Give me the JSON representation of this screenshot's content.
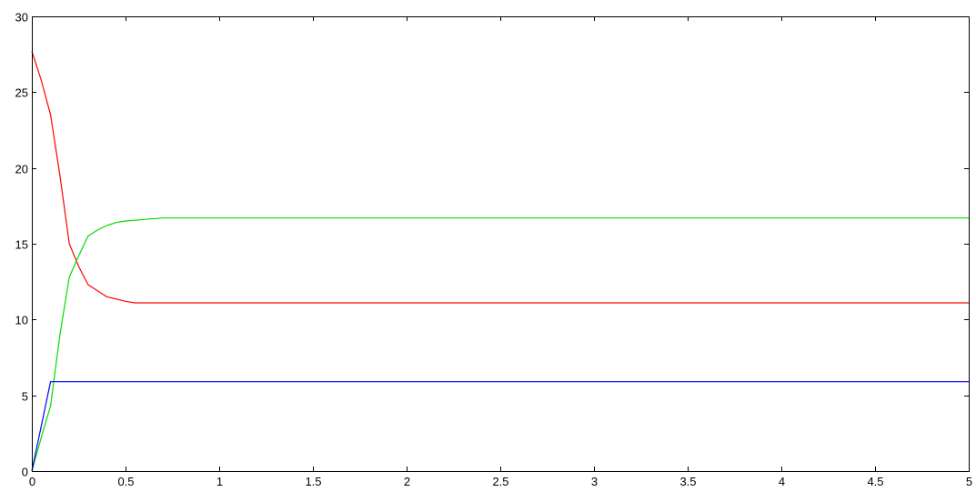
{
  "chart_data": {
    "type": "line",
    "title": "",
    "xlabel": "",
    "ylabel": "",
    "xlim": [
      0,
      5
    ],
    "ylim": [
      0,
      30
    ],
    "grid": true,
    "x_ticks": [
      0,
      0.5,
      1,
      1.5,
      2,
      2.5,
      3,
      3.5,
      4,
      4.5,
      5
    ],
    "x_tick_labels": [
      "0",
      "0.5",
      "1",
      "1.5",
      "2",
      "2.5",
      "3",
      "3.5",
      "4",
      "4.5",
      "5"
    ],
    "y_ticks": [
      0,
      5,
      10,
      15,
      20,
      25,
      30
    ],
    "y_tick_labels": [
      "0",
      "5",
      "10",
      "15",
      "20",
      "25",
      "30"
    ],
    "series": [
      {
        "color": "#ff0000",
        "x": [
          0,
          0.05,
          0.1,
          0.15,
          0.2,
          0.25,
          0.3,
          0.35,
          0.4,
          0.5,
          0.55,
          0.6,
          0.7,
          1.0,
          5.0
        ],
        "values": [
          27.7,
          25.8,
          23.5,
          19.5,
          15.0,
          13.5,
          12.3,
          11.9,
          11.5,
          11.2,
          11.1,
          11.1,
          11.1,
          11.1,
          11.1
        ]
      },
      {
        "color": "#00dd00",
        "x": [
          0,
          0.05,
          0.1,
          0.15,
          0.2,
          0.25,
          0.3,
          0.35,
          0.4,
          0.45,
          0.5,
          0.6,
          0.7,
          1.0,
          5.0
        ],
        "values": [
          0,
          2.2,
          4.3,
          9.0,
          12.8,
          14.2,
          15.5,
          15.9,
          16.2,
          16.4,
          16.5,
          16.6,
          16.7,
          16.7,
          16.7
        ],
        "comment_removed": true
      },
      {
        "color": "#0000ff",
        "x": [
          0,
          0.1,
          0.5,
          1.0,
          5.0
        ],
        "values": [
          0,
          5.9,
          5.9,
          5.9,
          5.9
        ]
      }
    ]
  }
}
